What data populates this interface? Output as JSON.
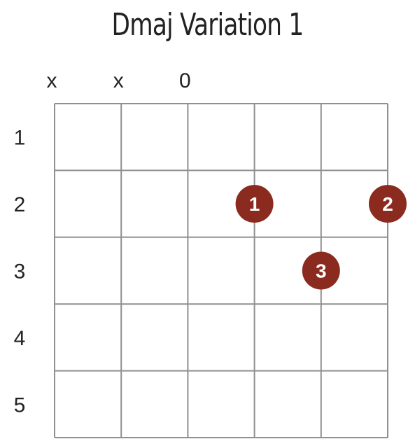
{
  "title": "Dmaj Variation 1",
  "string_markers": [
    "x",
    "x",
    "0",
    "",
    "",
    ""
  ],
  "fret_labels": [
    "1",
    "2",
    "3",
    "4",
    "5"
  ],
  "fingers": [
    {
      "label": "1",
      "string": 4,
      "fret": 2
    },
    {
      "label": "2",
      "string": 6,
      "fret": 2
    },
    {
      "label": "3",
      "string": 5,
      "fret": 3
    }
  ],
  "colors": {
    "grid": "#909090",
    "dot": "#8b2a1e",
    "dot_text": "#ffffff",
    "text": "#222222"
  }
}
